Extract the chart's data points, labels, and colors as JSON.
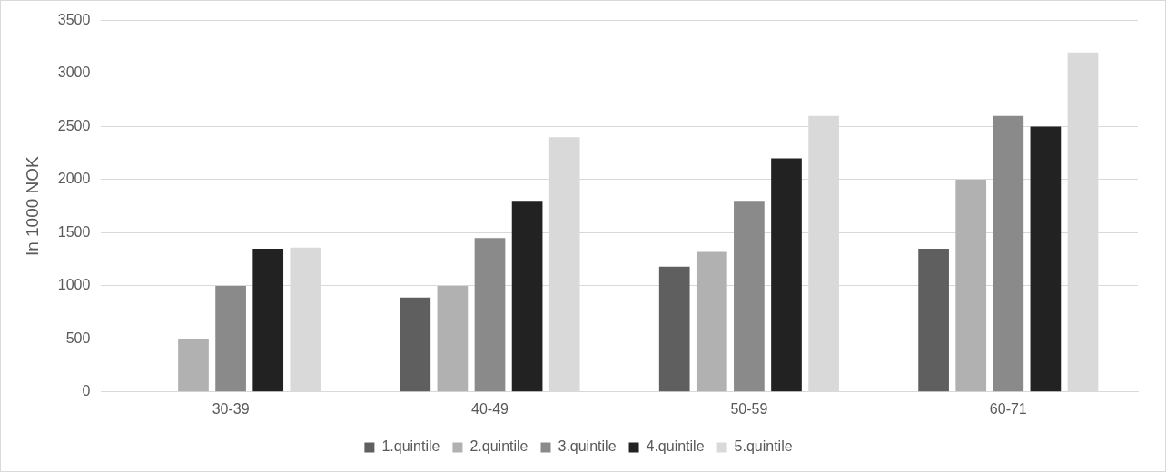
{
  "chart_data": {
    "type": "bar",
    "ylabel": "In 1000 NOK",
    "categories": [
      "30-39",
      "40-49",
      "50-59",
      "60-71"
    ],
    "series": [
      {
        "name": "1.quintile",
        "color": "#5f5f5f",
        "values": [
          0,
          890,
          1180,
          1350
        ]
      },
      {
        "name": "2.quintile",
        "color": "#b1b1b1",
        "values": [
          500,
          1000,
          1320,
          2000
        ]
      },
      {
        "name": "3.quintile",
        "color": "#8a8a8a",
        "values": [
          1000,
          1450,
          1800,
          2600
        ]
      },
      {
        "name": "4.quintile",
        "color": "#222222",
        "values": [
          1350,
          1800,
          2200,
          2500
        ]
      },
      {
        "name": "5.quintile",
        "color": "#d9d9d9",
        "values": [
          1360,
          2400,
          2600,
          3200
        ]
      }
    ],
    "ylim": [
      0,
      3500
    ],
    "yticks": [
      0,
      500,
      1000,
      1500,
      2000,
      2500,
      3000,
      3500
    ],
    "grid": "y",
    "legend": "bottom"
  }
}
